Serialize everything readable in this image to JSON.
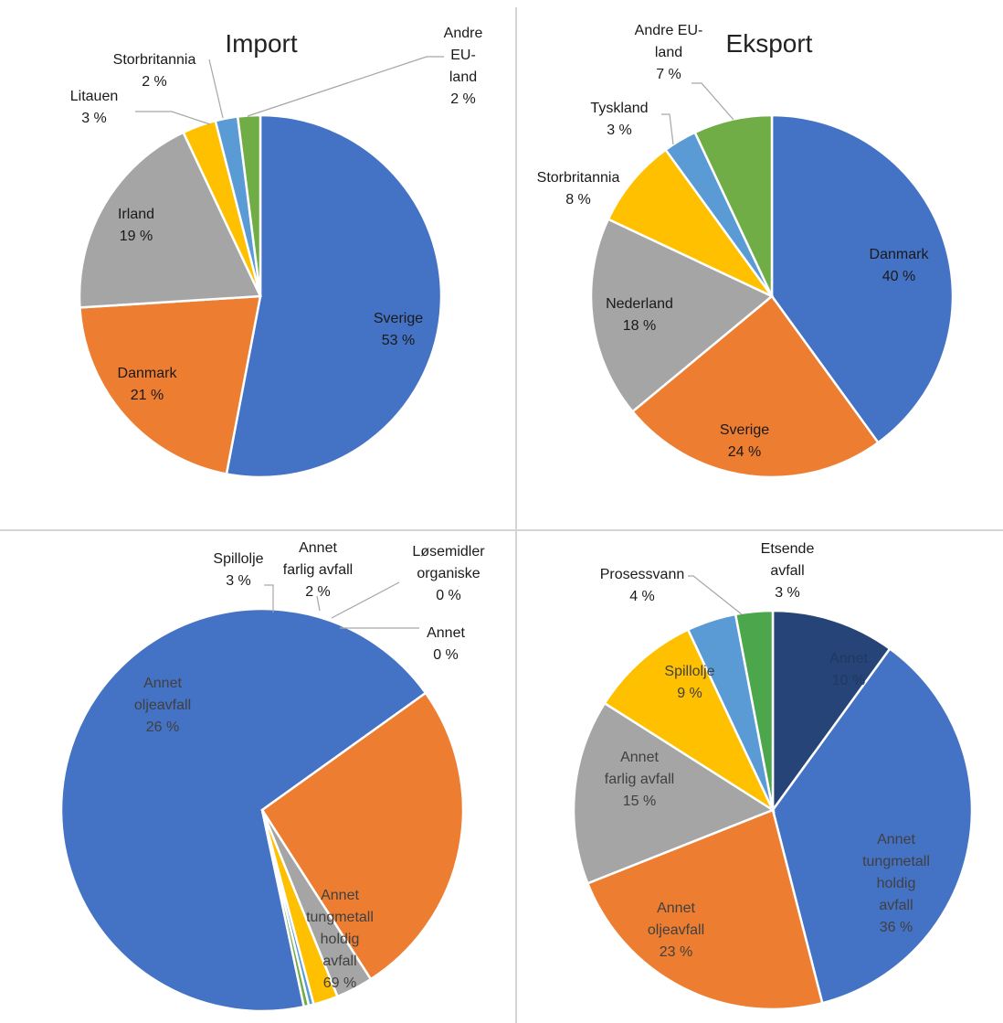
{
  "chart_data": [
    {
      "type": "pie",
      "title": "Import",
      "slices": [
        {
          "label": [
            "Sverige"
          ],
          "pct": "53 %",
          "value": 53,
          "color": "#4472c4",
          "text_color": "#1a1a1a",
          "outside": false
        },
        {
          "label": [
            "Danmark"
          ],
          "pct": "21 %",
          "value": 21,
          "color": "#ed7d31",
          "text_color": "#1a1a1a",
          "outside": false
        },
        {
          "label": [
            "Irland"
          ],
          "pct": "19 %",
          "value": 19,
          "color": "#a5a5a5",
          "text_color": "#1a1a1a",
          "outside": false
        },
        {
          "label": [
            "Litauen"
          ],
          "pct": "3 %",
          "value": 3,
          "color": "#ffc000",
          "text_color": "#1a1a1a",
          "outside": true
        },
        {
          "label": [
            "Storbritannia"
          ],
          "pct": "2 %",
          "value": 2,
          "color": "#5b9bd5",
          "text_color": "#1a1a1a",
          "outside": true
        },
        {
          "label": [
            "Andre",
            "EU-",
            "land"
          ],
          "pct": "2 %",
          "value": 2,
          "color": "#70ad47",
          "text_color": "#1a1a1a",
          "outside": true
        }
      ]
    },
    {
      "type": "pie",
      "title": "Eksport",
      "slices": [
        {
          "label": [
            "Danmark"
          ],
          "pct": "40 %",
          "value": 40,
          "color": "#4472c4",
          "text_color": "#1a1a1a",
          "outside": false
        },
        {
          "label": [
            "Sverige"
          ],
          "pct": "24 %",
          "value": 24,
          "color": "#ed7d31",
          "text_color": "#1a1a1a",
          "outside": false
        },
        {
          "label": [
            "Nederland"
          ],
          "pct": "18 %",
          "value": 18,
          "color": "#a5a5a5",
          "text_color": "#1a1a1a",
          "outside": false
        },
        {
          "label": [
            "Storbritannia"
          ],
          "pct": "8 %",
          "value": 8,
          "color": "#ffc000",
          "text_color": "#1a1a1a",
          "outside": true
        },
        {
          "label": [
            "Tyskland"
          ],
          "pct": "3 %",
          "value": 3,
          "color": "#5b9bd5",
          "text_color": "#1a1a1a",
          "outside": true
        },
        {
          "label": [
            "Andre EU-",
            "land"
          ],
          "pct": "7 %",
          "value": 7,
          "color": "#70ad47",
          "text_color": "#1a1a1a",
          "outside": true
        }
      ]
    },
    {
      "type": "pie",
      "title": "",
      "slices": [
        {
          "label": [
            "Annet",
            "tungmetall",
            "holdig",
            "avfall"
          ],
          "pct": "69 %",
          "value": 69,
          "color": "#4472c4",
          "text_color": "#404040",
          "outside": false
        },
        {
          "label": [
            "Annet",
            "oljeavfall"
          ],
          "pct": "26 %",
          "value": 26,
          "color": "#ed7d31",
          "text_color": "#404040",
          "outside": false
        },
        {
          "label": [
            "Spillolje"
          ],
          "pct": "3 %",
          "value": 3,
          "color": "#a5a5a5",
          "text_color": "#1a1a1a",
          "outside": true
        },
        {
          "label": [
            "Annet",
            "farlig avfall"
          ],
          "pct": "2 %",
          "value": 2,
          "color": "#ffc000",
          "text_color": "#1a1a1a",
          "outside": true
        },
        {
          "label": [
            "Løsemidler",
            "organiske"
          ],
          "pct": "0 %",
          "value": 0.4,
          "color": "#5b9bd5",
          "text_color": "#1a1a1a",
          "outside": true
        },
        {
          "label": [
            "Annet"
          ],
          "pct": "0 %",
          "value": 0.4,
          "color": "#70ad47",
          "text_color": "#1a1a1a",
          "outside": true
        }
      ]
    },
    {
      "type": "pie",
      "title": "",
      "slices": [
        {
          "label": [
            "Annet"
          ],
          "pct": "10 %",
          "value": 10,
          "color": "#264478",
          "text_color": "#1f3864",
          "outside": false
        },
        {
          "label": [
            "Annet",
            "tungmetall",
            "holdig",
            "avfall"
          ],
          "pct": "36 %",
          "value": 36,
          "color": "#4472c4",
          "text_color": "#404040",
          "outside": false
        },
        {
          "label": [
            "Annet",
            "oljeavfall"
          ],
          "pct": "23 %",
          "value": 23,
          "color": "#ed7d31",
          "text_color": "#404040",
          "outside": false
        },
        {
          "label": [
            "Annet",
            "farlig avfall"
          ],
          "pct": "15 %",
          "value": 15,
          "color": "#a5a5a5",
          "text_color": "#404040",
          "outside": false
        },
        {
          "label": [
            "Spillolje"
          ],
          "pct": "9 %",
          "value": 9,
          "color": "#ffc000",
          "text_color": "#404040",
          "outside": false
        },
        {
          "label": [
            "Prosessvann"
          ],
          "pct": "4 %",
          "value": 4,
          "color": "#5b9bd5",
          "text_color": "#1a1a1a",
          "outside": true
        },
        {
          "label": [
            "Etsende",
            "avfall"
          ],
          "pct": "3 %",
          "value": 3,
          "color": "#4ca64c",
          "text_color": "#1a1a1a",
          "outside": true
        }
      ]
    }
  ]
}
